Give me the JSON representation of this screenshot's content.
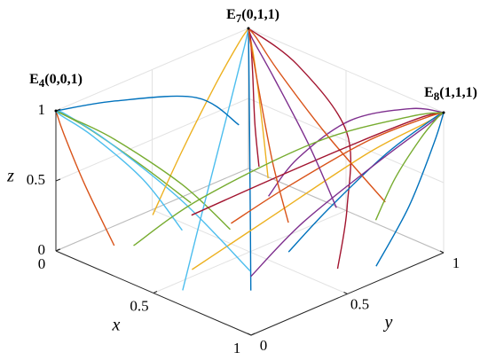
{
  "chart_data": {
    "type": "trajectory3d",
    "xlabel": "x",
    "ylabel": "y",
    "zlabel": "z",
    "xlim": [
      0,
      1
    ],
    "ylim": [
      0,
      1
    ],
    "zlim": [
      0,
      1
    ],
    "xticks": [
      0,
      0.5,
      1
    ],
    "yticks": [
      0,
      0.5,
      1
    ],
    "zticks": [
      0,
      0.5,
      1
    ],
    "grid": true,
    "points": [
      {
        "label": "E",
        "subscript": "4",
        "coords": "(0,0,1)",
        "x": 0,
        "y": 0,
        "z": 1
      },
      {
        "label": "E",
        "subscript": "7",
        "coords": "(0,1,1)",
        "x": 0,
        "y": 1,
        "z": 1
      },
      {
        "label": "E",
        "subscript": "8",
        "coords": "(1,1,1)",
        "x": 1,
        "y": 1,
        "z": 1
      }
    ],
    "series": [
      {
        "color": "#0072BD",
        "x": [
          0.9,
          0.7,
          0.4,
          0.15,
          0
        ],
        "y": [
          0.1,
          0.3,
          0.6,
          0.85,
          1
        ],
        "z": [
          0.2,
          0.5,
          0.8,
          0.95,
          1
        ]
      },
      {
        "color": "#D95319",
        "x": [
          0.2,
          0.1,
          0.03,
          0
        ],
        "y": [
          0.1,
          0.05,
          0.01,
          0
        ],
        "z": [
          0.1,
          0.5,
          0.85,
          1
        ]
      },
      {
        "color": "#EDB120",
        "x": [
          0.5,
          0.6,
          0.8,
          0.95,
          1
        ],
        "y": [
          0.2,
          0.5,
          0.8,
          0.95,
          1
        ],
        "z": [
          0.05,
          0.3,
          0.7,
          0.92,
          1
        ]
      },
      {
        "color": "#7E2F8E",
        "x": [
          0.3,
          0.4,
          0.6,
          0.85,
          1
        ],
        "y": [
          0.8,
          0.85,
          0.92,
          0.98,
          1
        ],
        "z": [
          0.1,
          0.4,
          0.75,
          0.95,
          1
        ]
      },
      {
        "color": "#77AC30",
        "x": [
          0.1,
          0.05,
          0.01,
          0
        ],
        "y": [
          0.6,
          0.4,
          0.15,
          0
        ],
        "z": [
          0.05,
          0.4,
          0.8,
          1
        ]
      },
      {
        "color": "#4DBEEE",
        "x": [
          0.7,
          0.4,
          0.15,
          0.02,
          0
        ],
        "y": [
          0.3,
          0.25,
          0.12,
          0.03,
          0
        ],
        "z": [
          0.1,
          0.45,
          0.8,
          0.97,
          1
        ]
      },
      {
        "color": "#A2142F",
        "x": [
          0.95,
          0.9,
          0.7,
          0.3,
          0
        ],
        "y": [
          0.5,
          0.6,
          0.8,
          0.95,
          1
        ],
        "z": [
          0.15,
          0.5,
          0.8,
          0.95,
          1
        ]
      },
      {
        "color": "#0072BD",
        "x": [
          0.6,
          0.7,
          0.85,
          0.97,
          1
        ],
        "y": [
          0.6,
          0.7,
          0.85,
          0.97,
          1
        ],
        "z": [
          0,
          0.3,
          0.7,
          0.95,
          1
        ]
      },
      {
        "color": "#D95319",
        "x": [
          0.8,
          0.5,
          0.2,
          0.05,
          0
        ],
        "y": [
          0.9,
          0.9,
          0.95,
          0.99,
          1
        ],
        "z": [
          0.3,
          0.6,
          0.85,
          0.97,
          1
        ]
      },
      {
        "color": "#EDB120",
        "x": [
          0.2,
          0.15,
          0.08,
          0.02,
          0
        ],
        "y": [
          0.3,
          0.5,
          0.75,
          0.93,
          1
        ],
        "z": [
          0.2,
          0.5,
          0.8,
          0.95,
          1
        ]
      },
      {
        "color": "#7E2F8E",
        "x": [
          0.9,
          0.92,
          0.96,
          0.99,
          1
        ],
        "y": [
          0.1,
          0.35,
          0.7,
          0.93,
          1
        ],
        "z": [
          0.3,
          0.55,
          0.8,
          0.95,
          1
        ]
      },
      {
        "color": "#77AC30",
        "x": [
          0.4,
          0.3,
          0.15,
          0.04,
          0
        ],
        "y": [
          0.5,
          0.35,
          0.15,
          0.03,
          0
        ],
        "z": [
          0.1,
          0.45,
          0.8,
          0.96,
          1
        ]
      },
      {
        "color": "#4DBEEE",
        "x": [
          0.6,
          0.45,
          0.2,
          0.05,
          0
        ],
        "y": [
          0.05,
          0.3,
          0.7,
          0.93,
          1
        ],
        "z": [
          0.05,
          0.35,
          0.75,
          0.95,
          1
        ]
      },
      {
        "color": "#A2142F",
        "x": [
          0.3,
          0.5,
          0.75,
          0.93,
          1
        ],
        "y": [
          0.4,
          0.6,
          0.82,
          0.96,
          1
        ],
        "z": [
          0.2,
          0.45,
          0.75,
          0.95,
          1
        ]
      },
      {
        "color": "#0072BD",
        "x": [
          0.05,
          0.03,
          0.01,
          0
        ],
        "y": [
          0.9,
          0.7,
          0.3,
          0
        ],
        "z": [
          0.4,
          0.7,
          0.9,
          1
        ]
      },
      {
        "color": "#D95319",
        "x": [
          0.7,
          0.75,
          0.85,
          0.96,
          1
        ],
        "y": [
          0.2,
          0.45,
          0.75,
          0.95,
          1
        ],
        "z": [
          0.5,
          0.65,
          0.85,
          0.97,
          1
        ]
      },
      {
        "color": "#EDB120",
        "x": [
          0.15,
          0.1,
          0.04,
          0
        ],
        "y": [
          0.95,
          0.97,
          0.99,
          1
        ],
        "z": [
          0.05,
          0.4,
          0.8,
          1
        ]
      },
      {
        "color": "#7E2F8E",
        "x": [
          0.5,
          0.35,
          0.15,
          0.03,
          0
        ],
        "y": [
          0.95,
          0.96,
          0.98,
          0.99,
          1
        ],
        "z": [
          0.05,
          0.4,
          0.75,
          0.95,
          1
        ]
      },
      {
        "color": "#77AC30",
        "x": [
          0.8,
          0.85,
          0.93,
          0.98,
          1
        ],
        "y": [
          0.85,
          0.9,
          0.95,
          0.99,
          1
        ],
        "z": [
          0.2,
          0.5,
          0.8,
          0.96,
          1
        ]
      },
      {
        "color": "#4DBEEE",
        "x": [
          0.45,
          0.3,
          0.12,
          0.02,
          0
        ],
        "y": [
          0.2,
          0.15,
          0.07,
          0.01,
          0
        ],
        "z": [
          0.3,
          0.6,
          0.85,
          0.97,
          1
        ]
      },
      {
        "color": "#A2142F",
        "x": [
          0.35,
          0.25,
          0.12,
          0.03,
          0
        ],
        "y": [
          0.7,
          0.78,
          0.9,
          0.98,
          1
        ],
        "z": [
          0.4,
          0.6,
          0.82,
          0.96,
          1
        ]
      },
      {
        "color": "#0072BD",
        "x": [
          0.95,
          0.97,
          0.99,
          1
        ],
        "y": [
          0.7,
          0.85,
          0.96,
          1
        ],
        "z": [
          0.05,
          0.4,
          0.8,
          1
        ]
      },
      {
        "color": "#D95319",
        "x": [
          0.55,
          0.4,
          0.2,
          0.05,
          0
        ],
        "y": [
          0.65,
          0.72,
          0.85,
          0.96,
          1
        ],
        "z": [
          0.15,
          0.45,
          0.78,
          0.95,
          1
        ]
      },
      {
        "color": "#77AC30",
        "x": [
          0.25,
          0.35,
          0.6,
          0.88,
          1
        ],
        "y": [
          0.15,
          0.4,
          0.75,
          0.95,
          1
        ],
        "z": [
          0.1,
          0.35,
          0.7,
          0.93,
          1
        ]
      }
    ]
  }
}
